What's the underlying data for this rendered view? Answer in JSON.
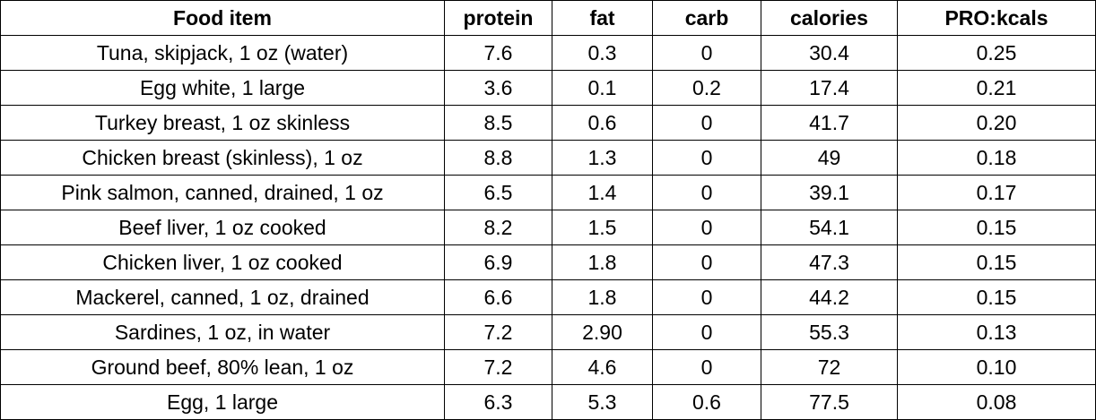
{
  "table": {
    "header": [
      "Food item",
      "protein",
      "fat",
      "carb",
      "calories",
      "PRO:kcals"
    ],
    "rows": [
      [
        "Tuna, skipjack, 1 oz (water)",
        "7.6",
        "0.3",
        "0",
        "30.4",
        "0.25"
      ],
      [
        "Egg white, 1 large",
        "3.6",
        "0.1",
        "0.2",
        "17.4",
        "0.21"
      ],
      [
        "Turkey breast, 1 oz skinless",
        "8.5",
        "0.6",
        "0",
        "41.7",
        "0.20"
      ],
      [
        "Chicken breast (skinless), 1 oz",
        "8.8",
        "1.3",
        "0",
        "49",
        "0.18"
      ],
      [
        "Pink salmon, canned, drained, 1 oz",
        "6.5",
        "1.4",
        "0",
        "39.1",
        "0.17"
      ],
      [
        "Beef liver, 1 oz cooked",
        "8.2",
        "1.5",
        "0",
        "54.1",
        "0.15"
      ],
      [
        "Chicken liver, 1 oz cooked",
        "6.9",
        "1.8",
        "0",
        "47.3",
        "0.15"
      ],
      [
        "Mackerel, canned, 1 oz, drained",
        "6.6",
        "1.8",
        "0",
        "44.2",
        "0.15"
      ],
      [
        "Sardines, 1 oz, in water",
        "7.2",
        "2.90",
        "0",
        "55.3",
        "0.13"
      ],
      [
        "Ground beef, 80% lean, 1 oz",
        "7.2",
        "4.6",
        "0",
        "72",
        "0.10"
      ],
      [
        "Egg, 1 large",
        "6.3",
        "5.3",
        "0.6",
        "77.5",
        "0.08"
      ]
    ]
  }
}
